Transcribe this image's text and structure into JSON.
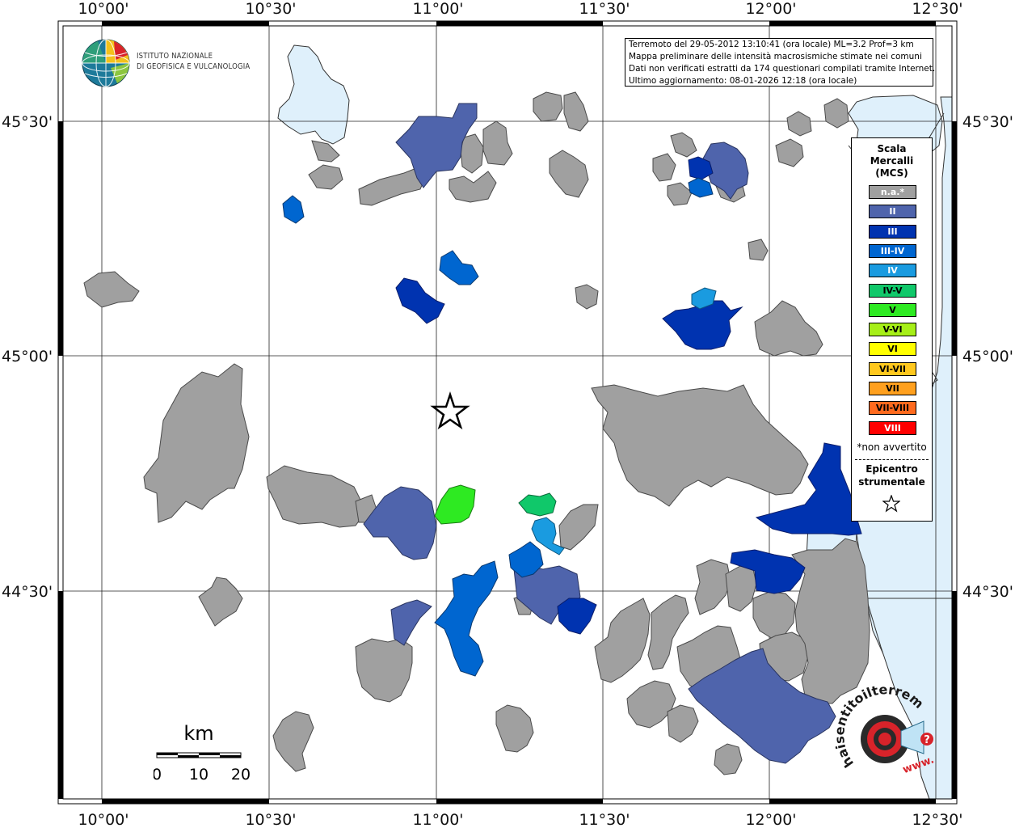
{
  "map": {
    "top_labels": [
      "10°00'",
      "10°30'",
      "11°00'",
      "11°30'",
      "12°00'",
      "12°30'"
    ],
    "bottom_labels": [
      "10°00'",
      "10°30'",
      "11°00'",
      "11°30'",
      "12°00'",
      "12°30'"
    ],
    "left_labels": [
      "45°30'",
      "45°00'",
      "44°30'"
    ],
    "right_labels": [
      "45°30'",
      "45°00'",
      "44°30'"
    ],
    "colors": {
      "na": "#a0a0a0",
      "II": "#4f64ac",
      "III": "#0033b0",
      "III-IV": "#0066d0",
      "IV": "#1a9be0",
      "IV-V": "#10c86a",
      "V": "#2eea22",
      "water": "#dff0fb"
    }
  },
  "logo": {
    "line1": "ISTITUTO NAZIONALE",
    "line2": "DI GEOFISICA E VULCANOLOGIA"
  },
  "info": {
    "line1": "Terremoto del 29-05-2012 13:10:41 (ora locale) ML=3.2 Prof=3 km",
    "line2": "Mappa preliminare delle intensità macrosismiche stimate nei comuni",
    "line3": "Dati non verificati estratti da 174 questionari compilati tramite Internet.",
    "line4": "Ultimo aggiornamento: 08-01-2026 12:18 (ora locale)"
  },
  "legend": {
    "title1": "Scala",
    "title2": "Mercalli",
    "title3": "(MCS)",
    "items": [
      {
        "label": "n.a.*",
        "color": "#a0a0a0",
        "text": "#ffffff"
      },
      {
        "label": "II",
        "color": "#4f64ac",
        "text": "#ffffff"
      },
      {
        "label": "III",
        "color": "#0033b0",
        "text": "#ffffff"
      },
      {
        "label": "III-IV",
        "color": "#0066d0",
        "text": "#ffffff"
      },
      {
        "label": "IV",
        "color": "#1a9be0",
        "text": "#ffffff"
      },
      {
        "label": "IV-V",
        "color": "#10c86a",
        "text": "#000000"
      },
      {
        "label": "V",
        "color": "#2eea22",
        "text": "#000000"
      },
      {
        "label": "V-VI",
        "color": "#a6ef18",
        "text": "#000000"
      },
      {
        "label": "VI",
        "color": "#ffff00",
        "text": "#000000"
      },
      {
        "label": "VI-VII",
        "color": "#ffc81e",
        "text": "#000000"
      },
      {
        "label": "VII",
        "color": "#ffa01e",
        "text": "#000000"
      },
      {
        "label": "VII-VIII",
        "color": "#ff6a1e",
        "text": "#000000"
      },
      {
        "label": "VIII",
        "color": "#ff0000",
        "text": "#ffffff"
      }
    ],
    "note": "*non avvertito",
    "epicenter1": "Epicentro",
    "epicenter2": "strumentale"
  },
  "scalebar": {
    "unit": "km",
    "ticks": [
      "0",
      "10",
      "20"
    ]
  },
  "badge": {
    "text": "haisentitoilterremoto.it",
    "text2": "www.",
    "question": "?"
  }
}
